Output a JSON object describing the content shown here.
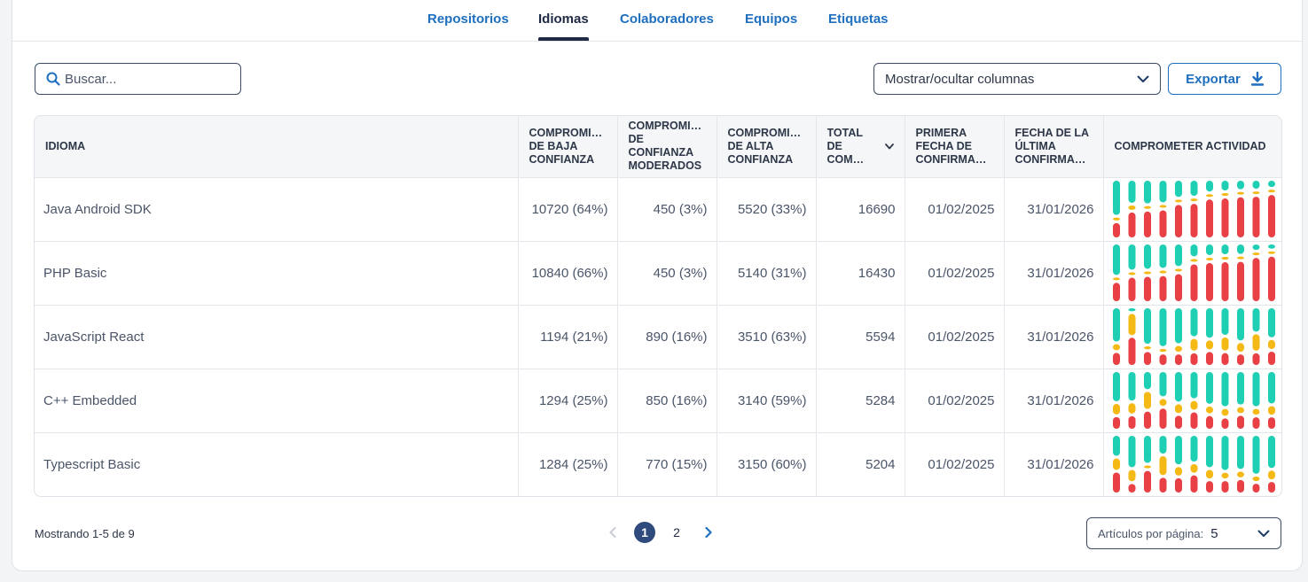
{
  "tabs": [
    {
      "label": "Repositorios",
      "active": false
    },
    {
      "label": "Idiomas",
      "active": true
    },
    {
      "label": "Colaboradores",
      "active": false
    },
    {
      "label": "Equipos",
      "active": false
    },
    {
      "label": "Etiquetas",
      "active": false
    }
  ],
  "toolbar": {
    "search_placeholder": "Buscar...",
    "columns_label": "Mostrar/ocultar columnas",
    "export_label": "Exportar"
  },
  "table": {
    "headers": [
      "IDIOMA",
      "COMPROMI… DE BAJA CONFIANZA",
      "COMPROMI… DE CONFIANZA MODERADOS",
      "COMPROMI… DE ALTA CONFIANZA",
      "TOTAL DE COM…",
      "PRIMERA FECHA DE CONFIRMA…",
      "FECHA DE LA ÚLTIMA CONFIRMA…",
      "COMPROMETER ACTIVIDAD"
    ],
    "rows": [
      {
        "language": "Java Android SDK",
        "low": "10720 (64%)",
        "moderate": "450 (3%)",
        "high": "5520 (33%)",
        "total": "16690",
        "first": "01/02/2025",
        "last": "31/01/2026",
        "activity": [
          [
            0.6,
            0.05,
            0.25
          ],
          [
            0.4,
            0.08,
            0.45
          ],
          [
            0.42,
            0.05,
            0.48
          ],
          [
            0.4,
            0.05,
            0.5
          ],
          [
            0.3,
            0.05,
            0.6
          ],
          [
            0.28,
            0.05,
            0.62
          ],
          [
            0.2,
            0.05,
            0.7
          ],
          [
            0.18,
            0.05,
            0.72
          ],
          [
            0.16,
            0.05,
            0.75
          ],
          [
            0.15,
            0.05,
            0.76
          ],
          [
            0.12,
            0.05,
            0.8
          ]
        ]
      },
      {
        "language": "PHP Basic",
        "low": "10840 (66%)",
        "moderate": "450 (3%)",
        "high": "5140 (31%)",
        "total": "16430",
        "first": "01/02/2025",
        "last": "31/01/2026",
        "activity": [
          [
            0.58,
            0.05,
            0.35
          ],
          [
            0.45,
            0.05,
            0.42
          ],
          [
            0.45,
            0.05,
            0.45
          ],
          [
            0.42,
            0.05,
            0.45
          ],
          [
            0.4,
            0.05,
            0.5
          ],
          [
            0.22,
            0.05,
            0.68
          ],
          [
            0.2,
            0.05,
            0.72
          ],
          [
            0.18,
            0.05,
            0.72
          ],
          [
            0.18,
            0.05,
            0.75
          ],
          [
            0.1,
            0.05,
            0.8
          ],
          [
            0.08,
            0.05,
            0.85
          ]
        ]
      },
      {
        "language": "JavaScript React",
        "low": "1194 (21%)",
        "moderate": "890 (16%)",
        "high": "3510 (63%)",
        "total": "5594",
        "first": "01/02/2025",
        "last": "31/01/2026",
        "activity": [
          [
            0.55,
            0.1,
            0.2
          ],
          [
            0.05,
            0.35,
            0.45
          ],
          [
            0.6,
            0.05,
            0.22
          ],
          [
            0.65,
            0.05,
            0.18
          ],
          [
            0.6,
            0.1,
            0.18
          ],
          [
            0.48,
            0.2,
            0.2
          ],
          [
            0.5,
            0.15,
            0.22
          ],
          [
            0.45,
            0.22,
            0.2
          ],
          [
            0.55,
            0.15,
            0.18
          ],
          [
            0.4,
            0.28,
            0.2
          ],
          [
            0.48,
            0.15,
            0.22
          ]
        ]
      },
      {
        "language": "C++ Embedded",
        "low": "1294 (25%)",
        "moderate": "850 (16%)",
        "high": "3140 (59%)",
        "total": "5284",
        "first": "01/02/2025",
        "last": "31/01/2026",
        "activity": [
          [
            0.5,
            0.18,
            0.2
          ],
          [
            0.5,
            0.18,
            0.22
          ],
          [
            0.3,
            0.3,
            0.3
          ],
          [
            0.42,
            0.12,
            0.35
          ],
          [
            0.5,
            0.15,
            0.22
          ],
          [
            0.45,
            0.15,
            0.28
          ],
          [
            0.55,
            0.12,
            0.22
          ],
          [
            0.6,
            0.12,
            0.18
          ],
          [
            0.55,
            0.1,
            0.22
          ],
          [
            0.6,
            0.1,
            0.2
          ],
          [
            0.55,
            0.15,
            0.2
          ]
        ]
      },
      {
        "language": "Typescript Basic",
        "low": "1284 (25%)",
        "moderate": "770 (15%)",
        "high": "3150 (60%)",
        "total": "5204",
        "first": "01/02/2025",
        "last": "31/01/2026",
        "activity": [
          [
            0.35,
            0.2,
            0.35
          ],
          [
            0.55,
            0.2,
            0.15
          ],
          [
            0.5,
            0.05,
            0.4
          ],
          [
            0.3,
            0.32,
            0.25
          ],
          [
            0.5,
            0.15,
            0.25
          ],
          [
            0.45,
            0.15,
            0.3
          ],
          [
            0.55,
            0.15,
            0.2
          ],
          [
            0.6,
            0.1,
            0.2
          ],
          [
            0.58,
            0.1,
            0.22
          ],
          [
            0.65,
            0.08,
            0.15
          ],
          [
            0.55,
            0.15,
            0.18
          ]
        ]
      }
    ]
  },
  "activity_colors": {
    "high": "#1ecfb3",
    "moderate": "#f5b915",
    "low": "#e84045"
  },
  "footer": {
    "showing": "Mostrando 1-5 de 9",
    "pages": [
      "1",
      "2"
    ],
    "current_page": "1",
    "per_page_label": "Artículos por página:",
    "per_page_value": "5"
  }
}
